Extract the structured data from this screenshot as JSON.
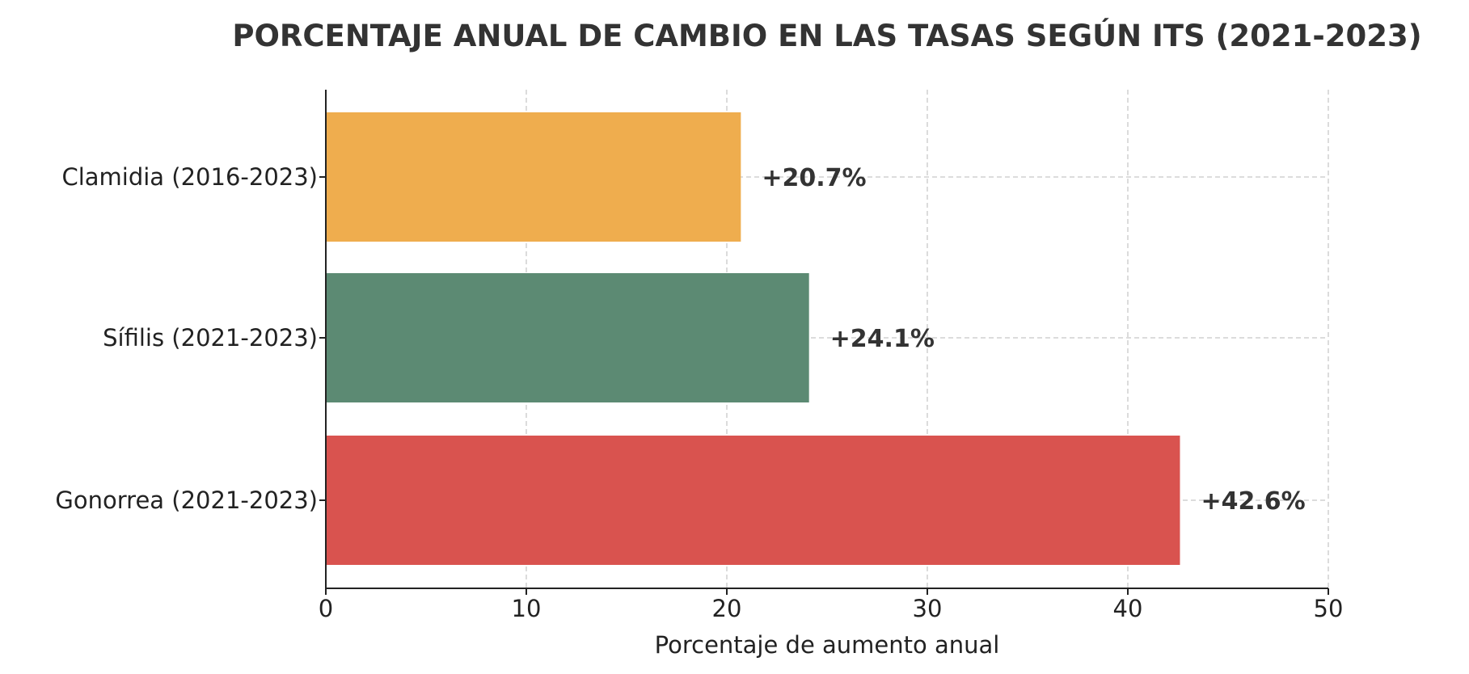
{
  "chart_data": {
    "type": "bar",
    "orientation": "horizontal",
    "title": "PORCENTAJE ANUAL DE CAMBIO EN LAS TASAS SEGÚN ITS (2021-2023)",
    "xlabel": "Porcentaje de aumento anual",
    "ylabel": "",
    "xlim": [
      0,
      50
    ],
    "xticks": [
      0,
      10,
      20,
      30,
      40,
      50
    ],
    "grid": true,
    "categories": [
      "Clamidia (2016-2023)",
      "Sífilis (2021-2023)",
      "Gonorrea (2021-2023)"
    ],
    "values": [
      20.7,
      24.1,
      42.6
    ],
    "data_labels": [
      "+20.7%",
      "+24.1%",
      "+42.6%"
    ],
    "colors": [
      "#EFAD4E",
      "#5C8A73",
      "#D9534F"
    ]
  }
}
